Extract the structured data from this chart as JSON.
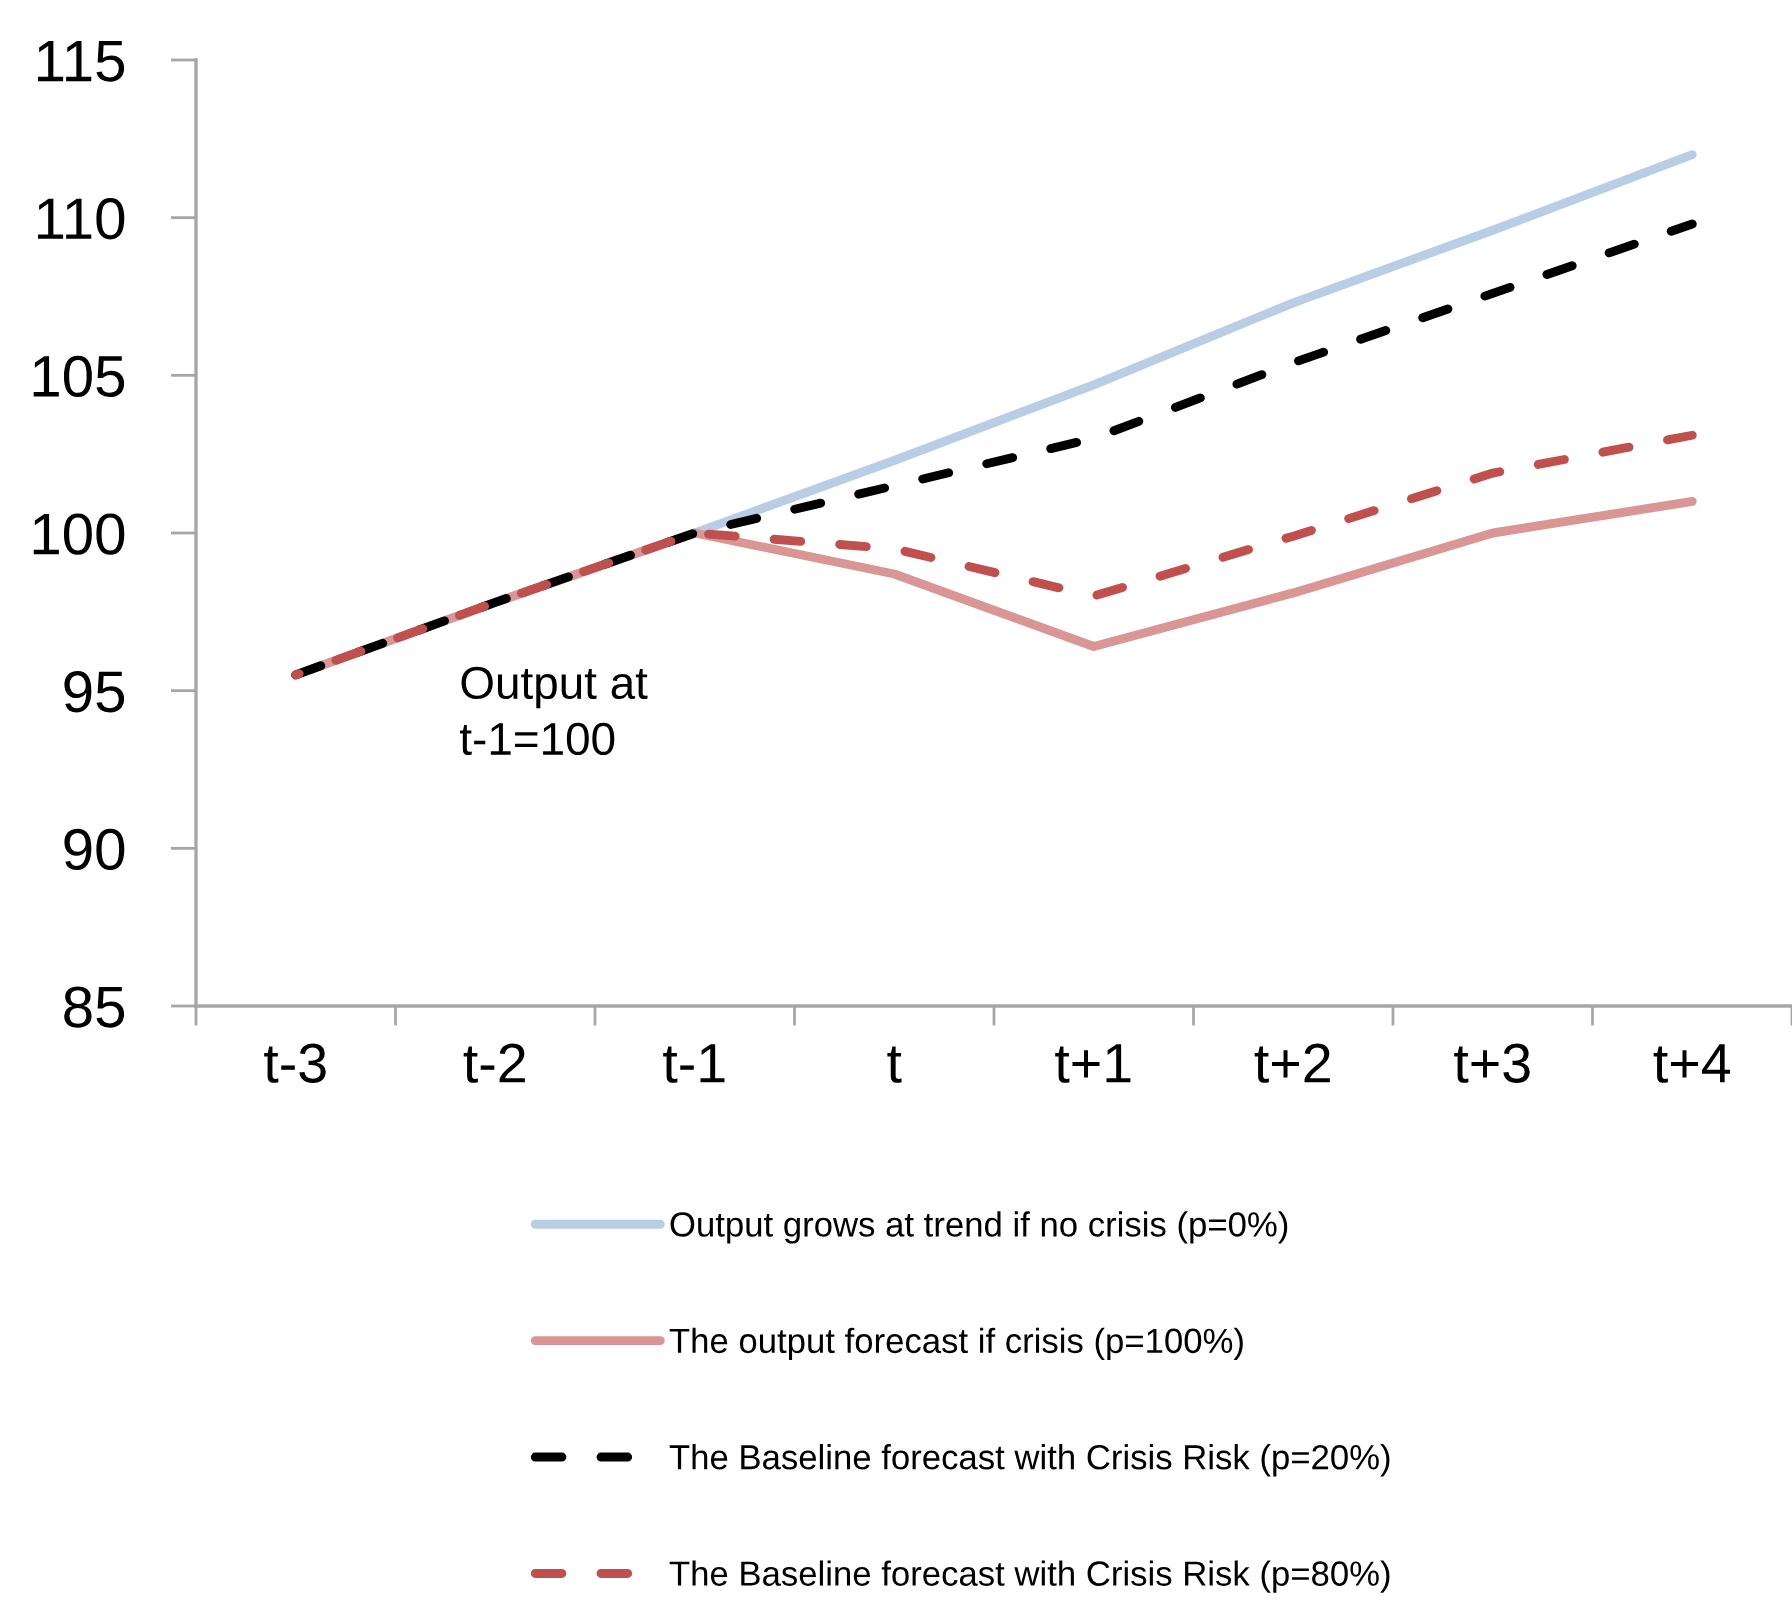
{
  "chart_data": {
    "type": "line",
    "categories": [
      "t-3",
      "t-2",
      "t-1",
      "t",
      "t+1",
      "t+2",
      "t+3",
      "t+4"
    ],
    "ylim": [
      85,
      115
    ],
    "yticks": [
      85,
      90,
      95,
      100,
      105,
      110,
      115
    ],
    "legend": "bottom",
    "series": [
      {
        "name": "Output grows at trend if no crisis (p=0%)",
        "color": "#b9cde5",
        "line_style": "solid",
        "values": [
          95.5,
          97.8,
          100,
          102.3,
          104.7,
          107.3,
          109.6,
          112.0
        ]
      },
      {
        "name": "The output forecast if crisis (p=100%)",
        "color": "#d99694",
        "line_style": "solid",
        "values": [
          95.5,
          97.8,
          100,
          98.7,
          96.4,
          98.1,
          100.0,
          101.0
        ]
      },
      {
        "name": "The Baseline forecast with Crisis Risk (p=20%)",
        "color": "#000000",
        "line_style": "dashed",
        "values": [
          95.5,
          97.8,
          100,
          101.5,
          103.0,
          105.4,
          107.6,
          109.8
        ]
      },
      {
        "name": "The Baseline forecast with Crisis Risk (p=80%)",
        "color": "#c0504d",
        "line_style": "dashed",
        "values": [
          95.5,
          97.8,
          100,
          99.5,
          98.0,
          99.9,
          101.9,
          103.1
        ]
      }
    ],
    "annotations": [
      "Output at\nt-1=100"
    ]
  }
}
